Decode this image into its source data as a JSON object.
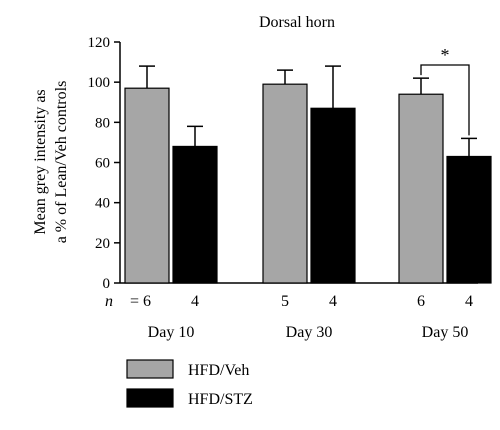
{
  "chart_data": {
    "type": "bar",
    "title": "Dorsal horn",
    "ylabel_line1": "Mean grey intensity as",
    "ylabel_line2": "a % of Lean/Veh controls",
    "ylim": [
      0,
      120
    ],
    "yticks": [
      0,
      20,
      40,
      60,
      80,
      100,
      120
    ],
    "categories": [
      "Day 10",
      "Day 30",
      "Day 50"
    ],
    "n_prefix": "n",
    "n_equals": " = ",
    "series": [
      {
        "name": "HFD/Veh",
        "color": "#a6a6a6",
        "values": [
          97,
          99,
          94
        ],
        "errors": [
          11,
          7,
          8
        ],
        "n": [
          "6",
          "5",
          "6"
        ]
      },
      {
        "name": "HFD/STZ",
        "color": "#000000",
        "values": [
          68,
          87,
          63
        ],
        "errors": [
          10,
          21,
          9
        ],
        "n": [
          "4",
          "4",
          "4"
        ]
      }
    ],
    "significance": [
      {
        "group": 2,
        "label": "*"
      }
    ],
    "grid": false,
    "legend_position": "bottom-left"
  }
}
